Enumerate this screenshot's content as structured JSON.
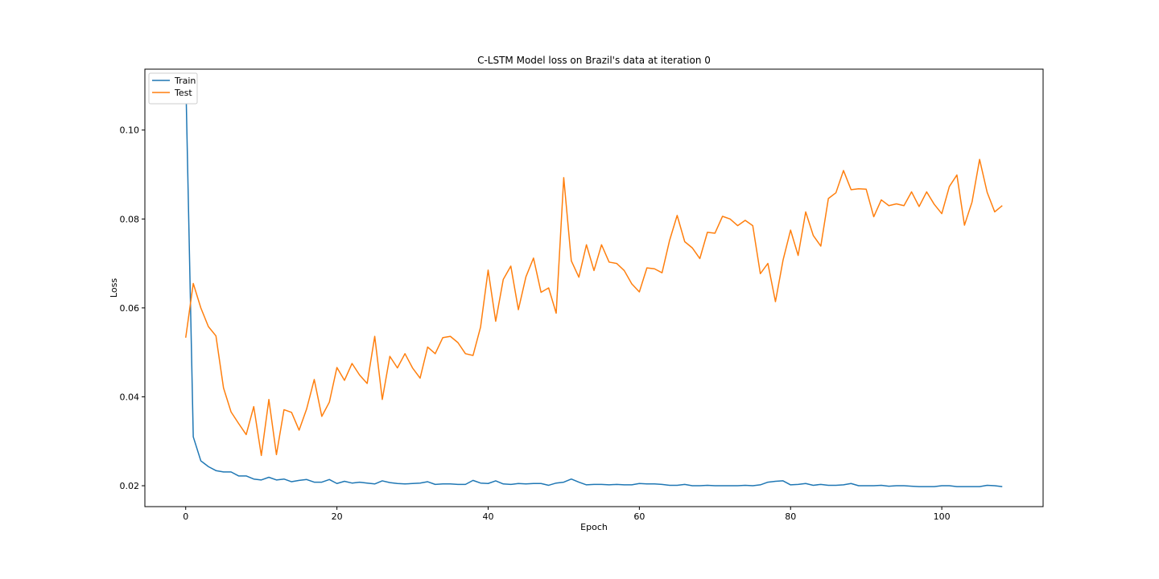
{
  "chart_data": {
    "type": "line",
    "title": "C-LSTM Model loss on Brazil's data at iteration 0",
    "xlabel": "Epoch",
    "ylabel": "Loss",
    "xlim": [
      -5.4,
      113.4
    ],
    "ylim": [
      0.0153,
      0.1137
    ],
    "xticks": [
      0,
      20,
      40,
      60,
      80,
      100
    ],
    "yticks": [
      0.02,
      0.04,
      0.06,
      0.08,
      0.1
    ],
    "ytick_labels": [
      "0.02",
      "0.04",
      "0.06",
      "0.08",
      "0.10"
    ],
    "legend_position": "upper-left",
    "grid": false,
    "series": [
      {
        "name": "Train",
        "color": "#1f77b4",
        "values": [
          0.1125,
          0.031,
          0.0256,
          0.0243,
          0.0234,
          0.0231,
          0.0231,
          0.0222,
          0.0222,
          0.0215,
          0.0213,
          0.0219,
          0.0213,
          0.0215,
          0.0209,
          0.0212,
          0.0214,
          0.0208,
          0.0208,
          0.0214,
          0.0205,
          0.021,
          0.0206,
          0.0208,
          0.0206,
          0.0204,
          0.0211,
          0.0207,
          0.0205,
          0.0204,
          0.0205,
          0.0206,
          0.0209,
          0.0203,
          0.0204,
          0.0204,
          0.0203,
          0.0203,
          0.0212,
          0.0206,
          0.0205,
          0.0211,
          0.0204,
          0.0203,
          0.0205,
          0.0204,
          0.0205,
          0.0205,
          0.0201,
          0.0206,
          0.0208,
          0.0215,
          0.0208,
          0.0202,
          0.0203,
          0.0203,
          0.0202,
          0.0203,
          0.0202,
          0.0202,
          0.0205,
          0.0204,
          0.0204,
          0.0203,
          0.0201,
          0.0201,
          0.0203,
          0.02,
          0.02,
          0.0201,
          0.02,
          0.02,
          0.02,
          0.02,
          0.0201,
          0.02,
          0.0202,
          0.0208,
          0.021,
          0.0211,
          0.0202,
          0.0203,
          0.0205,
          0.0201,
          0.0203,
          0.0201,
          0.0201,
          0.0202,
          0.0205,
          0.02,
          0.02,
          0.02,
          0.0201,
          0.0199,
          0.02,
          0.02,
          0.0199,
          0.0198,
          0.0198,
          0.0198,
          0.02,
          0.02,
          0.0198,
          0.0198,
          0.0198,
          0.0198,
          0.0201,
          0.02,
          0.0198
        ]
      },
      {
        "name": "Test",
        "color": "#ff7f0e",
        "values": [
          0.0533,
          0.0655,
          0.06,
          0.0558,
          0.0537,
          0.042,
          0.0366,
          0.034,
          0.0315,
          0.0378,
          0.0268,
          0.0394,
          0.027,
          0.0371,
          0.0365,
          0.0325,
          0.0373,
          0.0439,
          0.0356,
          0.0388,
          0.0466,
          0.0437,
          0.0475,
          0.0449,
          0.043,
          0.0536,
          0.0394,
          0.0491,
          0.0465,
          0.0497,
          0.0465,
          0.0442,
          0.0512,
          0.0497,
          0.0533,
          0.0536,
          0.0522,
          0.0497,
          0.0493,
          0.0557,
          0.0685,
          0.057,
          0.0664,
          0.0694,
          0.0596,
          0.067,
          0.0712,
          0.0635,
          0.0645,
          0.0588,
          0.0893,
          0.0706,
          0.0669,
          0.0742,
          0.0684,
          0.0742,
          0.0703,
          0.07,
          0.0684,
          0.0654,
          0.0636,
          0.069,
          0.0688,
          0.0679,
          0.0752,
          0.0808,
          0.0749,
          0.0735,
          0.0711,
          0.077,
          0.0768,
          0.0806,
          0.08,
          0.0785,
          0.0797,
          0.0785,
          0.0677,
          0.07,
          0.0614,
          0.0707,
          0.0775,
          0.0718,
          0.0816,
          0.0763,
          0.0739,
          0.0846,
          0.0859,
          0.0909,
          0.0866,
          0.0868,
          0.0867,
          0.0805,
          0.0843,
          0.083,
          0.0834,
          0.083,
          0.0861,
          0.0828,
          0.0861,
          0.0833,
          0.0812,
          0.0873,
          0.0899,
          0.0786,
          0.0838,
          0.0934,
          0.086,
          0.0816,
          0.083
        ]
      }
    ]
  }
}
